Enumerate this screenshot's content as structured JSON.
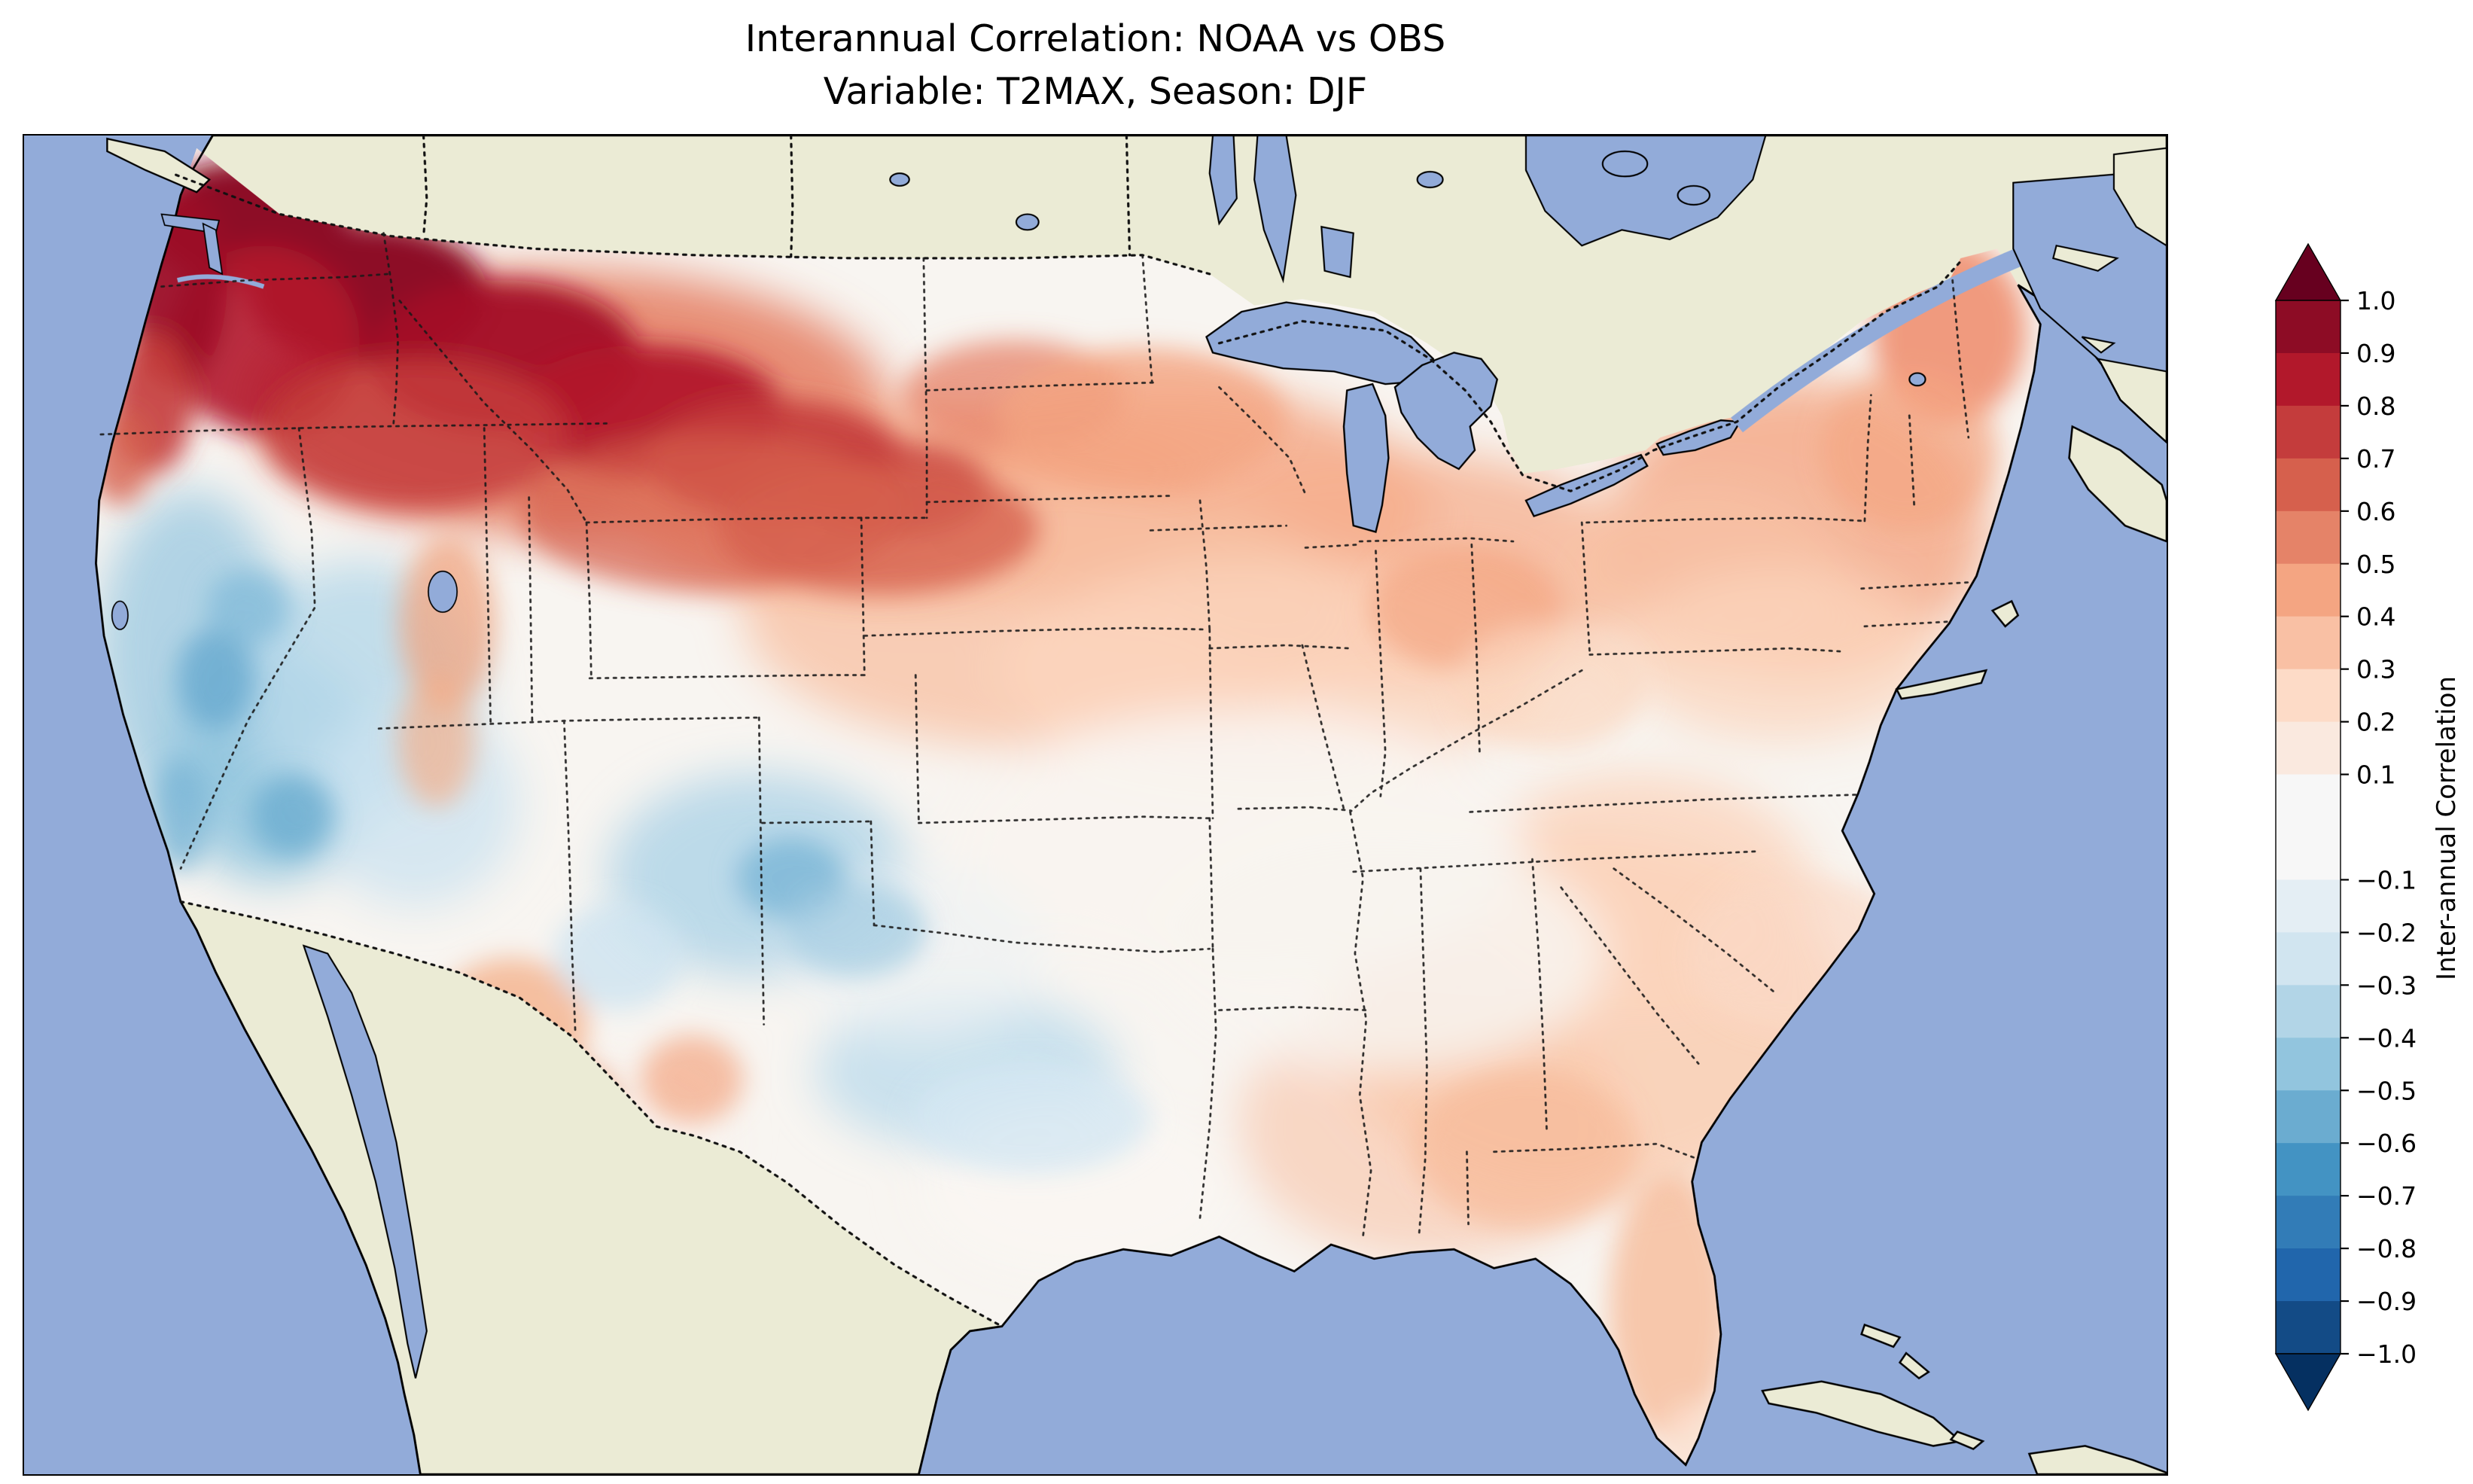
{
  "figure": {
    "title_line1": "Interannual Correlation: NOAA vs OBS",
    "title_line2": "Variable: T2MAX, Season: DJF"
  },
  "map": {
    "ocean_color": "#92abd9",
    "land_color": "#ebebd5",
    "lake_color": "#92abd9",
    "coastline_color": "#000000",
    "border_style": "dotted",
    "region_shown": "Contiguous United States with southern Canada, Mexico, Gulf of Mexico and Caribbean margins"
  },
  "colorbar": {
    "label": "Inter-annual Correlation",
    "over_color": "#67001f",
    "under_color": "#053061",
    "outline_color": "#000000",
    "bands": [
      {
        "color": "#8d0c25",
        "units": 1
      },
      {
        "color": "#b2182b",
        "units": 1
      },
      {
        "color": "#c43c3c",
        "units": 1
      },
      {
        "color": "#d6604d",
        "units": 1
      },
      {
        "color": "#e58368",
        "units": 1
      },
      {
        "color": "#f4a582",
        "units": 1
      },
      {
        "color": "#f9c0a4",
        "units": 1
      },
      {
        "color": "#fddbc7",
        "units": 1
      },
      {
        "color": "#fae9df",
        "units": 1
      },
      {
        "color": "#f7f7f7",
        "units": 2
      },
      {
        "color": "#e4eef4",
        "units": 1
      },
      {
        "color": "#d1e5f0",
        "units": 1
      },
      {
        "color": "#b2d5e7",
        "units": 1
      },
      {
        "color": "#92c5de",
        "units": 1
      },
      {
        "color": "#6bacd0",
        "units": 1
      },
      {
        "color": "#4393c3",
        "units": 1
      },
      {
        "color": "#327cb7",
        "units": 1
      },
      {
        "color": "#2166ac",
        "units": 1
      },
      {
        "color": "#134b86",
        "units": 1
      }
    ],
    "ticks": [
      {
        "label": "1.0",
        "unit": 0
      },
      {
        "label": "0.9",
        "unit": 1
      },
      {
        "label": "0.8",
        "unit": 2
      },
      {
        "label": "0.7",
        "unit": 3
      },
      {
        "label": "0.6",
        "unit": 4
      },
      {
        "label": "0.5",
        "unit": 5
      },
      {
        "label": "0.4",
        "unit": 6
      },
      {
        "label": "0.3",
        "unit": 7
      },
      {
        "label": "0.2",
        "unit": 8
      },
      {
        "label": "0.1",
        "unit": 9
      },
      {
        "label": "−0.1",
        "unit": 11
      },
      {
        "label": "−0.2",
        "unit": 12
      },
      {
        "label": "−0.3",
        "unit": 13
      },
      {
        "label": "−0.4",
        "unit": 14
      },
      {
        "label": "−0.5",
        "unit": 15
      },
      {
        "label": "−0.6",
        "unit": 16
      },
      {
        "label": "−0.7",
        "unit": 17
      },
      {
        "label": "−0.8",
        "unit": 18
      },
      {
        "label": "−0.9",
        "unit": 19
      },
      {
        "label": "−1.0",
        "unit": 20
      }
    ]
  },
  "chart_data": {
    "type": "heatmap",
    "subtype": "filled-contour-correlation-map",
    "title": "Interannual Correlation: NOAA vs OBS",
    "subtitle": "Variable: T2MAX, Season: DJF",
    "variable": "T2MAX",
    "season": "DJF",
    "datasets_compared": [
      "NOAA",
      "OBS"
    ],
    "region": "Contiguous United States",
    "colormap": "RdBu_r",
    "colorbar_label": "Inter-annual Correlation",
    "extend": "both",
    "levels": [
      -1.0,
      -0.9,
      -0.8,
      -0.7,
      -0.6,
      -0.5,
      -0.4,
      -0.3,
      -0.2,
      -0.1,
      0.1,
      0.2,
      0.3,
      0.4,
      0.5,
      0.6,
      0.7,
      0.8,
      0.9,
      1.0
    ],
    "value_range": [
      -1.0,
      1.0
    ],
    "regional_values_approx": [
      {
        "region": "Pacific Northwest (WA/OR/N-ID)",
        "correlation": 0.85
      },
      {
        "region": "Northern Rockies / western Montana",
        "correlation": 0.8
      },
      {
        "region": "Eastern Montana / Wyoming high plains",
        "correlation": 0.6
      },
      {
        "region": "Dakotas / northern plains",
        "correlation": 0.5
      },
      {
        "region": "Minnesota / Upper Midwest",
        "correlation": 0.4
      },
      {
        "region": "Great Lakes states",
        "correlation": 0.35
      },
      {
        "region": "Northeast (NY / New England)",
        "correlation": 0.4
      },
      {
        "region": "Maine",
        "correlation": 0.5
      },
      {
        "region": "California coast and Central Valley",
        "correlation": -0.35
      },
      {
        "region": "Nevada / Utah Great Basin",
        "correlation": -0.3
      },
      {
        "region": "Northern Utah mountains",
        "correlation": 0.3
      },
      {
        "region": "Central Arizona",
        "correlation": 0.3
      },
      {
        "region": "CO-KS-OK panhandle area",
        "correlation": -0.4
      },
      {
        "region": "Central Texas / Oklahoma",
        "correlation": -0.2
      },
      {
        "region": "Central plains / Midwest corridor",
        "correlation": 0.0
      },
      {
        "region": "Mid-South (AR/TN/KY)",
        "correlation": 0.05
      },
      {
        "region": "Southeast (GA/AL/SC)",
        "correlation": 0.25
      },
      {
        "region": "Florida peninsula",
        "correlation": 0.3
      },
      {
        "region": "Mid-Atlantic / Carolinas coast",
        "correlation": 0.2
      }
    ]
  }
}
